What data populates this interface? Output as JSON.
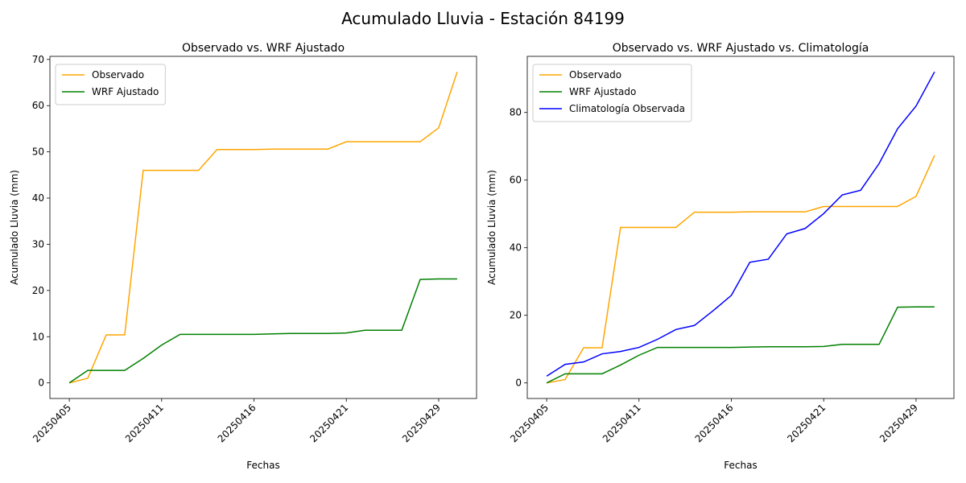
{
  "title": "Acumulado Lluvia - Estación 84199",
  "chart_data": [
    {
      "type": "line",
      "title": "Observado vs. WRF Ajustado",
      "x_label": "Fechas",
      "y_label": "Acumulado Lluvia (mm)",
      "categories": [
        "20250405",
        null,
        null,
        null,
        null,
        "20250411",
        null,
        null,
        null,
        null,
        "20250416",
        null,
        null,
        null,
        null,
        "20250421",
        null,
        null,
        null,
        null,
        "20250429",
        null
      ],
      "series": [
        {
          "name": "Observado",
          "color": "#ffa500",
          "values": [
            0,
            1,
            10.4,
            10.4,
            46,
            46,
            46,
            46,
            50.5,
            50.5,
            50.5,
            50.6,
            50.6,
            50.6,
            50.6,
            52.2,
            52.2,
            52.2,
            52.2,
            52.2,
            55.2,
            67.3
          ]
        },
        {
          "name": "WRF Ajustado",
          "color": "#008000",
          "values": [
            0,
            2.7,
            2.7,
            2.7,
            5.3,
            8.2,
            10.5,
            10.5,
            10.5,
            10.5,
            10.5,
            10.6,
            10.7,
            10.7,
            10.7,
            10.8,
            11.4,
            11.4,
            11.4,
            22.4,
            22.5,
            22.5
          ]
        }
      ],
      "ylim": [
        -3.37,
        70.67
      ],
      "yticks": [
        0,
        10,
        20,
        30,
        40,
        50,
        60,
        70
      ],
      "legend": "upper left"
    },
    {
      "type": "line",
      "title": "Observado vs. WRF Ajustado vs. Climatología",
      "x_label": "Fechas",
      "y_label": "Acumulado Lluvia (mm)",
      "categories": [
        "20250405",
        null,
        null,
        null,
        null,
        "20250411",
        null,
        null,
        null,
        null,
        "20250416",
        null,
        null,
        null,
        null,
        "20250421",
        null,
        null,
        null,
        null,
        "20250429",
        null
      ],
      "series": [
        {
          "name": "Observado",
          "color": "#ffa500",
          "values": [
            0,
            1,
            10.4,
            10.4,
            46,
            46,
            46,
            46,
            50.5,
            50.5,
            50.5,
            50.6,
            50.6,
            50.6,
            50.6,
            52.2,
            52.2,
            52.2,
            52.2,
            52.2,
            55.2,
            67.3
          ]
        },
        {
          "name": "WRF Ajustado",
          "color": "#008000",
          "values": [
            0,
            2.7,
            2.7,
            2.7,
            5.3,
            8.2,
            10.5,
            10.5,
            10.5,
            10.5,
            10.5,
            10.6,
            10.7,
            10.7,
            10.7,
            10.8,
            11.4,
            11.4,
            11.4,
            22.4,
            22.5,
            22.5
          ]
        },
        {
          "name": "Climatología Observada",
          "color": "#0000ff",
          "values": [
            2.0,
            5.5,
            6.2,
            8.6,
            9.3,
            10.5,
            12.9,
            15.8,
            17.0,
            21.3,
            25.9,
            35.7,
            36.6,
            44.1,
            45.7,
            50.1,
            55.6,
            57.0,
            64.9,
            75.2,
            81.9,
            92.0
          ]
        }
      ],
      "ylim": [
        -4.6,
        96.6
      ],
      "yticks": [
        0,
        20,
        40,
        60,
        80
      ],
      "legend": "upper left"
    }
  ]
}
